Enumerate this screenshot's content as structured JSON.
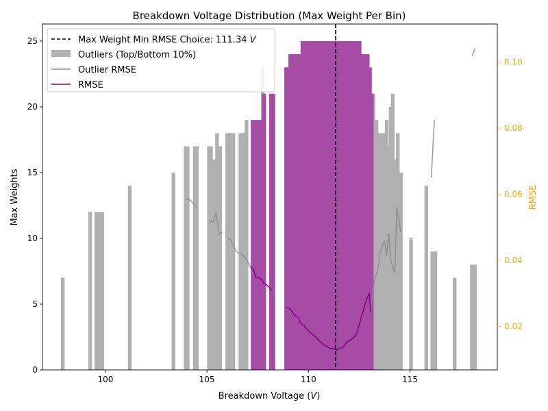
{
  "chart_data": {
    "type": "bar",
    "title": "Breakdown Voltage Distribution (Max Weight Per Bin)",
    "xlabel_main": "Breakdown Voltage (",
    "xlabel_var": "V",
    "xlabel_end": ")",
    "ylabel": "Max Weights",
    "y2label": "RMSE",
    "xlim": [
      96.9,
      119.3
    ],
    "ylim": [
      0,
      26.3
    ],
    "y2lim": [
      0.0068,
      0.1115
    ],
    "xticks": [
      100,
      105,
      110,
      115
    ],
    "yticks": [
      0,
      5,
      10,
      15,
      20,
      25
    ],
    "y2ticks": [
      0.02,
      0.04,
      0.06,
      0.08,
      0.1
    ],
    "y2tick_labels": [
      "0.02",
      "0.04",
      "0.06",
      "0.08",
      "0.10"
    ],
    "grid": false,
    "legend_position": "top-left",
    "bar_width": 0.18,
    "vline": {
      "x": 111.34,
      "label_main": "Max Weight Min RMSE Choice: 111.34 ",
      "label_var": "V"
    },
    "colors": {
      "outlier_bars": "#b0b0b0",
      "main_bars": "#a64ca6",
      "main_bars_edge": "#800080",
      "outlier_rmse": "#8a8a8a",
      "rmse": "#800080",
      "vline": "#000000",
      "secondary_axis": "#ffa500"
    },
    "series": [
      {
        "name": "Outliers (Top/Bottom 10%)",
        "kind": "bar",
        "x": [
          97.9,
          99.25,
          99.55,
          99.65,
          99.75,
          99.85,
          101.2,
          103.35,
          103.95,
          104.05,
          104.4,
          104.5,
          105.1,
          105.2,
          105.35,
          105.5,
          105.65,
          106.0,
          106.1,
          106.2,
          106.3,
          106.65,
          106.75,
          106.85,
          106.95,
          107.75,
          113.05,
          113.2,
          113.35,
          113.5,
          113.6,
          113.7,
          113.85,
          113.95,
          114.05,
          114.15,
          114.25,
          114.4,
          114.55,
          115.05,
          115.8,
          116.1,
          116.25,
          117.2,
          118.05,
          118.2
        ],
        "values": [
          7,
          12,
          12,
          12,
          12,
          12,
          14,
          15,
          17,
          17,
          17,
          17,
          17,
          17,
          16,
          18,
          17,
          18,
          18,
          18,
          18,
          18,
          18,
          18,
          19,
          23,
          23,
          21,
          19,
          18,
          18,
          18,
          19,
          17,
          20,
          21,
          16,
          18,
          15,
          10,
          14,
          9,
          9,
          7,
          8,
          8
        ]
      },
      {
        "name": "",
        "kind": "bar",
        "x": [
          107.25,
          107.35,
          107.45,
          107.55,
          107.65,
          107.8,
          108.15,
          108.25,
          108.9,
          109.0,
          109.1,
          109.2,
          109.3,
          109.4,
          109.5,
          109.6,
          109.7,
          109.8,
          109.9,
          110.0,
          110.1,
          110.2,
          110.3,
          110.4,
          110.5,
          110.6,
          110.7,
          110.8,
          110.9,
          111.0,
          111.1,
          111.2,
          111.3,
          111.4,
          111.5,
          111.6,
          111.7,
          111.8,
          111.9,
          112.0,
          112.1,
          112.2,
          112.3,
          112.4,
          112.5,
          112.6,
          112.7,
          112.8,
          112.9,
          113.0,
          113.1
        ],
        "values": [
          19,
          19,
          19,
          19,
          19,
          21,
          21,
          21,
          23,
          23,
          24,
          24,
          24,
          24,
          24,
          24,
          25,
          25,
          25,
          25,
          25,
          25,
          25,
          25,
          25,
          25,
          25,
          25,
          25,
          25,
          25,
          25,
          25,
          25,
          25,
          25,
          25,
          25,
          25,
          25,
          25,
          25,
          25,
          25,
          25,
          24,
          24,
          24,
          24,
          23,
          21
        ]
      },
      {
        "name": "Outlier RMSE",
        "kind": "line",
        "axis": "right",
        "segments": [
          [
            [
              99.55,
              0.0995
            ],
            [
              99.65,
              0.099
            ],
            [
              99.75,
              0.0984
            ],
            [
              99.85,
              0.0978
            ],
            [
              99.95,
              0.0972
            ]
          ],
          [
            [
              103.95,
              0.0585
            ],
            [
              104.05,
              0.0584
            ],
            [
              104.15,
              0.0583
            ],
            [
              104.4,
              0.0567
            ],
            [
              104.5,
              0.056
            ]
          ],
          [
            [
              105.1,
              0.0518
            ],
            [
              105.2,
              0.0517
            ],
            [
              105.3,
              0.0514
            ],
            [
              105.45,
              0.0545
            ],
            [
              105.6,
              0.0478
            ],
            [
              105.75,
              0.0485
            ]
          ],
          [
            [
              106.0,
              0.0467
            ],
            [
              106.15,
              0.0465
            ],
            [
              106.3,
              0.0445
            ],
            [
              106.45,
              0.0427
            ],
            [
              106.6,
              0.042
            ],
            [
              106.75,
              0.0416
            ],
            [
              106.9,
              0.0405
            ],
            [
              107.05,
              0.0392
            ],
            [
              107.15,
              0.0379
            ]
          ],
          [
            [
              113.05,
              0.0244
            ],
            [
              113.15,
              0.03
            ],
            [
              113.25,
              0.034
            ],
            [
              113.35,
              0.036
            ],
            [
              113.45,
              0.0385
            ],
            [
              113.55,
              0.043
            ],
            [
              113.65,
              0.0445
            ],
            [
              113.75,
              0.0458
            ],
            [
              113.85,
              0.0415
            ],
            [
              113.95,
              0.048
            ],
            [
              114.05,
              0.04
            ],
            [
              114.15,
              0.038
            ],
            [
              114.25,
              0.036
            ],
            [
              114.35,
              0.056
            ],
            [
              114.45,
              0.052
            ],
            [
              114.55,
              0.0485
            ]
          ],
          [
            [
              116.05,
              0.065
            ],
            [
              116.2,
              0.0825
            ]
          ],
          [
            [
              118.05,
              0.1018
            ],
            [
              118.2,
              0.104
            ]
          ]
        ]
      },
      {
        "name": "RMSE",
        "kind": "line",
        "axis": "right",
        "segments": [
          [
            [
              107.15,
              0.0379
            ],
            [
              107.3,
              0.0372
            ],
            [
              107.4,
              0.0347
            ],
            [
              107.5,
              0.0348
            ],
            [
              107.6,
              0.0345
            ],
            [
              107.7,
              0.0343
            ],
            [
              107.8,
              0.033
            ],
            [
              107.9,
              0.0327
            ],
            [
              108.0,
              0.0322
            ],
            [
              108.1,
              0.0316
            ],
            [
              108.2,
              0.0309
            ]
          ],
          [
            [
              108.9,
              0.0256
            ],
            [
              109.0,
              0.0255
            ],
            [
              109.1,
              0.0252
            ],
            [
              109.2,
              0.0244
            ],
            [
              109.3,
              0.0235
            ],
            [
              109.4,
              0.023
            ],
            [
              109.5,
              0.0226
            ],
            [
              109.6,
              0.021
            ],
            [
              109.7,
              0.0205
            ],
            [
              109.8,
              0.0201
            ],
            [
              109.9,
              0.0192
            ],
            [
              110.0,
              0.0186
            ],
            [
              110.1,
              0.018
            ],
            [
              110.2,
              0.0175
            ],
            [
              110.3,
              0.0171
            ],
            [
              110.4,
              0.0165
            ],
            [
              110.5,
              0.0158
            ],
            [
              110.6,
              0.0152
            ],
            [
              110.7,
              0.0147
            ],
            [
              110.8,
              0.0142
            ],
            [
              110.9,
              0.014
            ],
            [
              111.0,
              0.0135
            ],
            [
              111.1,
              0.0132
            ],
            [
              111.2,
              0.0134
            ],
            [
              111.3,
              0.013
            ],
            [
              111.4,
              0.0128
            ],
            [
              111.5,
              0.0131
            ],
            [
              111.6,
              0.0134
            ],
            [
              111.7,
              0.0137
            ],
            [
              111.8,
              0.0145
            ],
            [
              111.9,
              0.0153
            ],
            [
              112.0,
              0.0156
            ],
            [
              112.1,
              0.0159
            ],
            [
              112.2,
              0.0165
            ],
            [
              112.3,
              0.0172
            ],
            [
              112.4,
              0.0182
            ],
            [
              112.5,
              0.0205
            ],
            [
              112.6,
              0.0228
            ],
            [
              112.7,
              0.0246
            ],
            [
              112.8,
              0.027
            ],
            [
              112.9,
              0.0288
            ],
            [
              113.0,
              0.03
            ],
            [
              113.05,
              0.0244
            ]
          ]
        ]
      }
    ]
  }
}
